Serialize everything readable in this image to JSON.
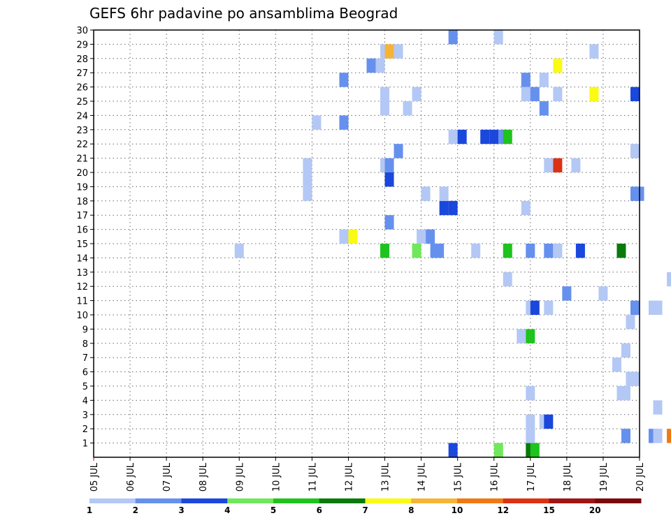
{
  "chart_data": {
    "type": "heatmap",
    "title": "GEFS 6hr padavine po ansamblima Beograd",
    "x_tick_labels": [
      "05 JUL",
      "06 JUL",
      "07 JUL",
      "08 JUL",
      "09 JUL",
      "10 JUL",
      "11 JUL",
      "12 JUL",
      "13 JUL",
      "14 JUL",
      "15 JUL",
      "16 JUL",
      "17 JUL",
      "18 JUL",
      "19 JUL",
      "20 JUL"
    ],
    "x_range_days": [
      0,
      15
    ],
    "y_tick_labels": [
      "1",
      "2",
      "3",
      "4",
      "5",
      "6",
      "7",
      "8",
      "9",
      "10",
      "11",
      "12",
      "13",
      "14",
      "15",
      "16",
      "17",
      "18",
      "19",
      "20",
      "21",
      "22",
      "23",
      "24",
      "25",
      "26",
      "27",
      "28",
      "29",
      "30"
    ],
    "y_range": [
      0,
      30
    ],
    "grid": true,
    "colorbar": {
      "labels": [
        "1",
        "2",
        "3",
        "4",
        "5",
        "6",
        "7",
        "8",
        "10",
        "12",
        "15",
        "20"
      ],
      "colors": [
        "#b4c8f5",
        "#6690ee",
        "#1a47dc",
        "#6fe85a",
        "#1ec31e",
        "#0a7a0a",
        "#fafa14",
        "#f5b437",
        "#f07814",
        "#dc3214",
        "#a01414",
        "#7a0a0a"
      ]
    },
    "cells": [
      [
        9.875,
        0,
        3
      ],
      [
        11.125,
        0,
        4
      ],
      [
        12.0,
        0,
        6
      ],
      [
        12.125,
        0,
        5
      ],
      [
        12.0,
        1,
        1
      ],
      [
        14.625,
        1,
        2
      ],
      [
        15.375,
        1,
        2
      ],
      [
        15.5,
        1,
        1
      ],
      [
        15.875,
        1,
        9
      ],
      [
        12.0,
        2,
        1
      ],
      [
        12.375,
        2,
        1
      ],
      [
        12.5,
        2,
        3
      ],
      [
        15.5,
        3,
        1
      ],
      [
        12.0,
        4,
        1
      ],
      [
        14.5,
        4,
        1
      ],
      [
        14.625,
        4,
        1
      ],
      [
        14.75,
        5,
        1
      ],
      [
        14.875,
        5,
        1
      ],
      [
        14.375,
        6,
        1
      ],
      [
        14.625,
        7,
        1
      ],
      [
        11.75,
        8,
        1
      ],
      [
        12.0,
        8,
        5
      ],
      [
        14.75,
        9,
        1
      ],
      [
        12.0,
        10,
        1
      ],
      [
        12.125,
        10,
        3
      ],
      [
        12.5,
        10,
        1
      ],
      [
        14.875,
        10,
        2
      ],
      [
        15.375,
        10,
        1
      ],
      [
        15.5,
        10,
        1
      ],
      [
        13.0,
        11,
        2
      ],
      [
        14.0,
        11,
        1
      ],
      [
        11.375,
        12,
        1
      ],
      [
        15.875,
        12,
        1
      ],
      [
        4.0,
        14,
        1
      ],
      [
        8.0,
        14,
        5
      ],
      [
        8.875,
        14,
        4
      ],
      [
        9.375,
        14,
        2
      ],
      [
        9.5,
        14,
        2
      ],
      [
        10.5,
        14,
        1
      ],
      [
        11.375,
        14,
        5
      ],
      [
        12.0,
        14,
        2
      ],
      [
        12.5,
        14,
        2
      ],
      [
        12.75,
        14,
        1
      ],
      [
        13.375,
        14,
        3
      ],
      [
        14.5,
        14,
        6
      ],
      [
        6.875,
        15,
        1
      ],
      [
        7.125,
        15,
        7
      ],
      [
        9.0,
        15,
        1
      ],
      [
        9.25,
        15,
        2
      ],
      [
        8.125,
        16,
        2
      ],
      [
        9.625,
        17,
        3
      ],
      [
        9.875,
        17,
        3
      ],
      [
        11.875,
        17,
        1
      ],
      [
        9.625,
        18,
        1
      ],
      [
        9.125,
        18,
        1
      ],
      [
        8.125,
        19,
        3
      ],
      [
        5.875,
        19,
        1
      ],
      [
        5.875,
        18,
        1
      ],
      [
        14.875,
        18,
        2
      ],
      [
        15.0,
        18,
        2
      ],
      [
        5.875,
        20,
        1
      ],
      [
        8.0,
        20,
        1
      ],
      [
        8.125,
        20,
        2
      ],
      [
        12.5,
        20,
        1
      ],
      [
        12.75,
        20,
        10
      ],
      [
        13.25,
        20,
        1
      ],
      [
        8.375,
        21,
        2
      ],
      [
        14.875,
        21,
        1
      ],
      [
        9.875,
        22,
        1
      ],
      [
        10.125,
        22,
        3
      ],
      [
        10.75,
        22,
        3
      ],
      [
        11.0,
        22,
        3
      ],
      [
        11.25,
        22,
        2
      ],
      [
        11.375,
        22,
        5
      ],
      [
        6.125,
        23,
        1
      ],
      [
        6.875,
        23,
        2
      ],
      [
        8.0,
        24,
        1
      ],
      [
        8.625,
        24,
        1
      ],
      [
        12.375,
        24,
        2
      ],
      [
        8.0,
        25,
        1
      ],
      [
        8.875,
        25,
        1
      ],
      [
        11.875,
        25,
        1
      ],
      [
        12.125,
        25,
        2
      ],
      [
        12.75,
        25,
        1
      ],
      [
        13.75,
        25,
        7
      ],
      [
        14.875,
        25,
        3
      ],
      [
        6.875,
        26,
        2
      ],
      [
        11.875,
        26,
        2
      ],
      [
        12.375,
        26,
        1
      ],
      [
        7.625,
        27,
        2
      ],
      [
        7.875,
        27,
        1
      ],
      [
        12.75,
        27,
        7
      ],
      [
        8.0,
        28,
        1
      ],
      [
        8.125,
        28,
        8
      ],
      [
        8.375,
        28,
        1
      ],
      [
        13.75,
        28,
        1
      ],
      [
        9.875,
        29,
        2
      ],
      [
        11.125,
        29,
        1
      ]
    ]
  }
}
